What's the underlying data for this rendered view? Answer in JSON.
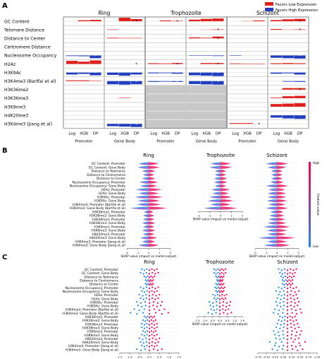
{
  "panels": {
    "A": {
      "label": "A"
    },
    "B": {
      "label": "B"
    },
    "C": {
      "label": "C"
    }
  },
  "legend": {
    "low": {
      "label": "Favors Low Expression",
      "color": "#e0201b"
    },
    "high": {
      "label": "Favors High Expression",
      "color": "#1f3fbf"
    }
  },
  "stages": [
    "Ring",
    "Trophozoite",
    "Schizont"
  ],
  "chart_data": [
    {
      "type": "bar",
      "panel": "A",
      "features": [
        "GC Content",
        "Telomere Distance",
        "Distance to Center",
        "Centromere Distance",
        "Nucleosome Occupancy",
        "H2Az",
        "H3K9Ac",
        "H3K4me3 (Bartfai et al)",
        "H3K36me2",
        "H3K36me3",
        "H3K9me3",
        "H4K20me3",
        "H3K4me3 (Jiang et al)"
      ],
      "model_labels": [
        "Log",
        "XGB",
        "DP",
        "Log",
        "XGB",
        "DP"
      ],
      "region_labels": [
        "Promoter",
        "Gene Body"
      ],
      "unavailable": {
        "stage": "Trophozoite",
        "features": [
          "H3K36me2",
          "H3K36me3",
          "H3K9me3",
          "H4K20me3",
          "H3K4me3 (Jiang et al)"
        ]
      },
      "series": [
        {
          "stage": "Ring",
          "values": [
            [
              0,
              0.25,
              0.35,
              0,
              0.9,
              0.55
            ],
            [
              0,
              0,
              0,
              0.1,
              0,
              0
            ],
            [
              0,
              0,
              0,
              0.15,
              0.1,
              0.1
            ],
            [
              0,
              0,
              0,
              0,
              0,
              0
            ],
            [
              -0.15,
              -0.2,
              -0.7,
              0,
              0,
              0
            ],
            [
              0.8,
              0.6,
              0.9,
              0,
              0,
              0
            ],
            [
              -0.5,
              -0.35,
              -0.7,
              -0.6,
              -0.8,
              -0.5
            ],
            [
              0.2,
              0.2,
              0.1,
              -0.8,
              -0.9,
              -0.8
            ],
            [
              0,
              0,
              0,
              0,
              0,
              0
            ],
            [
              0,
              0,
              0,
              0,
              0.1,
              0
            ],
            [
              0,
              0,
              0,
              0,
              0,
              0
            ],
            [
              0,
              0,
              0,
              0,
              0,
              0
            ],
            [
              0,
              0,
              0,
              -0.6,
              -0.7,
              -0.8
            ]
          ],
          "stars": [
            [
              0,
              5
            ],
            [
              4,
              2
            ],
            [
              5,
              5
            ],
            [
              6,
              2
            ],
            [
              7,
              5
            ],
            [
              12,
              5
            ]
          ]
        },
        {
          "stage": "Trophozoite",
          "values": [
            [
              0,
              0.2,
              0.1,
              0.4,
              0.6,
              0.7
            ],
            [
              0,
              0,
              0,
              0,
              0.05,
              0.1
            ],
            [
              0,
              0,
              0,
              0.25,
              0.15,
              0.45
            ],
            [
              0,
              0,
              0,
              0,
              0,
              0
            ],
            [
              0,
              0,
              0,
              -0.1,
              -0.1,
              -0.15
            ],
            [
              0.2,
              0.15,
              0.25,
              0,
              0.25,
              0.25
            ],
            [
              -0.2,
              -0.15,
              -0.3,
              -0.7,
              -0.8,
              -0.9
            ],
            [
              -0.2,
              -0.15,
              -0.2,
              -0.75,
              -0.85,
              -0.9
            ],
            [
              0,
              0,
              0,
              0,
              0,
              0
            ],
            [
              0,
              0,
              0,
              0,
              0,
              0
            ],
            [
              0,
              0,
              0,
              0,
              0,
              0
            ],
            [
              0,
              0,
              0,
              0,
              0,
              0
            ],
            [
              0,
              0,
              0,
              0,
              0,
              0
            ]
          ],
          "stars": [
            [
              0,
              2
            ],
            [
              1,
              5
            ],
            [
              2,
              5
            ],
            [
              5,
              2
            ],
            [
              5,
              5
            ],
            [
              6,
              2
            ],
            [
              6,
              5
            ],
            [
              7,
              2
            ],
            [
              7,
              5
            ]
          ]
        },
        {
          "stage": "Schizont",
          "values": [
            [
              0,
              0.05,
              0.2,
              0.3,
              0.5,
              0.6
            ],
            [
              0,
              0,
              0,
              0.2,
              0.05,
              0.1
            ],
            [
              0,
              0,
              0,
              0,
              0,
              0
            ],
            [
              0,
              0,
              0,
              0,
              0,
              0
            ],
            [
              -0.1,
              0,
              0,
              -0.6,
              -0.7,
              -0.8
            ],
            [
              0.15,
              0.1,
              0.1,
              0.2,
              0.25,
              0.2
            ],
            [
              0,
              0,
              0,
              -0.3,
              -0.2,
              -0.5
            ],
            [
              0,
              0,
              0,
              0,
              -0.15,
              -0.2
            ],
            [
              0,
              0,
              0,
              0,
              0.4,
              0.4
            ],
            [
              0,
              0,
              0,
              0.15,
              0.5,
              0.6
            ],
            [
              0,
              0,
              0,
              0.7,
              0.8,
              0.9
            ],
            [
              0,
              0,
              0,
              -0.6,
              -0.8,
              -0.9
            ],
            [
              0.2,
              0.2,
              0,
              0,
              0,
              0
            ]
          ],
          "stars": [
            [
              0,
              5
            ],
            [
              1,
              5
            ],
            [
              4,
              5
            ],
            [
              8,
              5
            ],
            [
              11,
              5
            ],
            [
              12,
              2
            ]
          ]
        }
      ]
    },
    {
      "type": "scatter",
      "panel": "B",
      "features": [
        "GC Content: Promoter",
        "GC Content: Gene Body",
        "Distance to Telomeres",
        "Distance to Centromeres",
        "Distance to Center",
        "Nucleosome Occupancy: Promoter",
        "Nucleosome Occupancy: Gene Body",
        "H2Az: Promoter",
        "H2Az: Gene Body",
        "H3K9Ac: Promoter",
        "H3K9Ac: Gene Body",
        "H3K4me3: Promoter (Bartfai et al)",
        "H3K4me3: Gene Body (Bartfai et al)",
        "H3K36me2: Promoter",
        "H3K36me2: Gene Body",
        "H3K36me3: Promoter",
        "H3K36me3: Gene Body",
        "H3K9me3: Promoter",
        "H3K9me3: Gene Body",
        "H4K20me3: Promoter",
        "H4K20me3: Gene Body",
        "H3K4me3: Promoter (Jiang et al)",
        "H3K4me3: Gene Body (Jiang et al)"
      ],
      "xlabel": "SHAP value (impact on model output)",
      "colorbar_label": "Feature value",
      "colorbar_high": "High",
      "colorbar_low": "Low",
      "colorbar_colors": [
        "#1e88e5",
        "#ff0052"
      ],
      "stages": [
        {
          "stage": "Ring",
          "xticks": [
            "-2",
            "-1",
            "0",
            "1",
            "2"
          ],
          "feature_count": 23,
          "spread": [
            0.55,
            0.6,
            0.35,
            0.3,
            0.35,
            0.5,
            0.45,
            0.7,
            0.55,
            0.75,
            0.6,
            0.65,
            1.0,
            0.25,
            0.3,
            0.3,
            0.35,
            0.3,
            0.35,
            0.3,
            0.45,
            0.35,
            0.55
          ]
        },
        {
          "stage": "Trophozoite",
          "xticks": [
            "-2",
            "-1",
            "0",
            "1",
            "2"
          ],
          "feature_count": 13,
          "spread": [
            0.55,
            0.6,
            0.3,
            0.3,
            0.35,
            0.35,
            0.3,
            0.5,
            0.45,
            0.6,
            0.7,
            0.55,
            0.9
          ]
        },
        {
          "stage": "Schizont",
          "xticks": [
            "-2",
            "-1",
            "0",
            "1",
            "2"
          ],
          "feature_count": 23,
          "spread": [
            0.6,
            0.5,
            0.3,
            0.3,
            0.3,
            0.35,
            0.6,
            0.45,
            0.5,
            0.5,
            0.55,
            0.45,
            0.6,
            0.35,
            0.4,
            0.45,
            0.5,
            0.7,
            0.55,
            0.5,
            1.0,
            0.55,
            0.7
          ]
        }
      ]
    },
    {
      "type": "scatter",
      "panel": "C",
      "features": [
        "GC Content: Promoter",
        "GC Content: Gene Body",
        "Distance to Telomeres",
        "Distance to Centromeres",
        "Distance to Center",
        "Nucleosome Occupancy: Promoter",
        "Nucleosome Occupancy: Gene Body",
        "H2Az: Promoter",
        "H2Az: Gene Body",
        "H3K9Ac: Promoter",
        "H3K9Ac: Gene Body",
        "H3K4me3: Promoter (Bartfai et al)",
        "H3K4me3: Gene Body (Bartfai et al)",
        "H3K36me2: Promoter",
        "H3K36me2: Gene Body",
        "H3K36me3: Promoter",
        "H3K36me3: Gene Body",
        "H3K9me3: Promoter",
        "H3K9me3: Gene Body",
        "H4K20me3: Promoter",
        "H4K20me3: Gene Body",
        "H3K4me3: Promoter (Jiang et al)",
        "H3K4me3: Gene Body (Jiang et al)"
      ],
      "xlabel": "SHAP value (impact on model output)",
      "stages": [
        {
          "stage": "Ring",
          "xticks": [
            "-1.5",
            "-1.0",
            "-0.5",
            "0.0",
            "0.5",
            "1.0",
            "1.5"
          ],
          "feature_count": 23,
          "spread": [
            0.3,
            0.35,
            0.2,
            0.15,
            0.15,
            0.35,
            0.3,
            0.4,
            0.35,
            0.5,
            0.45,
            0.6,
            0.75,
            0.2,
            0.25,
            0.3,
            0.3,
            0.25,
            0.3,
            0.4,
            0.35,
            0.3,
            0.5
          ]
        },
        {
          "stage": "Trophozoite",
          "xticks": [
            "-1.5",
            "-1.0",
            "-0.5",
            "0.0",
            "0.5",
            "1.0",
            "1.5"
          ],
          "feature_count": 13,
          "spread": [
            0.3,
            0.3,
            0.2,
            0.15,
            0.2,
            0.25,
            0.2,
            0.35,
            0.3,
            0.55,
            0.5,
            0.45,
            0.6
          ]
        },
        {
          "stage": "Schizont",
          "xticks": [
            "-0.75",
            "-0.50",
            "-0.25",
            "0.00",
            "0.25",
            "0.50",
            "0.75",
            "1.00"
          ],
          "feature_count": 23,
          "spread": [
            0.35,
            0.3,
            0.25,
            0.2,
            0.2,
            0.35,
            0.45,
            0.35,
            0.4,
            0.45,
            0.4,
            0.5,
            0.55,
            0.3,
            0.35,
            0.4,
            0.45,
            0.55,
            0.5,
            0.45,
            0.7,
            0.5,
            0.6
          ]
        }
      ]
    }
  ]
}
